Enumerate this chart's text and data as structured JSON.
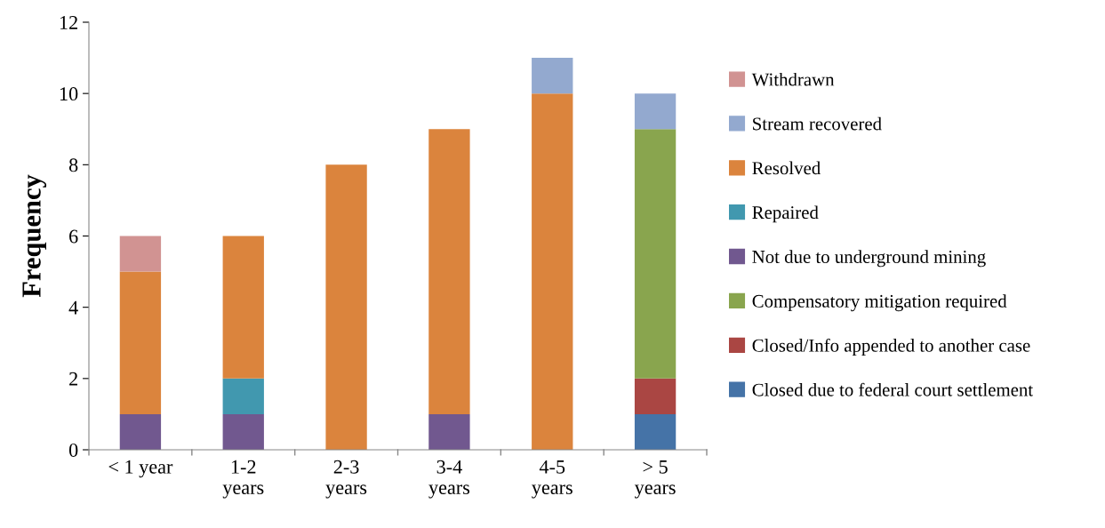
{
  "chart_data": {
    "type": "bar",
    "stacked": true,
    "ylabel": "Frequency",
    "categories": [
      "< 1 year",
      "1-2\nyears",
      "2-3\nyears",
      "3-4\nyears",
      "4-5\nyears",
      "> 5\nyears"
    ],
    "series": [
      {
        "name": "Closed due to federal court settlement",
        "color": "#4573a7",
        "values": [
          null,
          null,
          null,
          null,
          null,
          1
        ]
      },
      {
        "name": "Closed/Info appended to another case",
        "color": "#aa4643",
        "values": [
          null,
          null,
          null,
          null,
          null,
          1
        ]
      },
      {
        "name": "Compensatory mitigation required",
        "color": "#89a54e",
        "values": [
          null,
          null,
          null,
          null,
          null,
          7
        ]
      },
      {
        "name": "Not due to underground mining",
        "color": "#71588f",
        "values": [
          1,
          1,
          null,
          1,
          null,
          null
        ]
      },
      {
        "name": "Repaired",
        "color": "#4198af",
        "values": [
          null,
          1,
          null,
          null,
          null,
          null
        ]
      },
      {
        "name": "Resolved",
        "color": "#db843d",
        "values": [
          4,
          4,
          8,
          8,
          10,
          null
        ]
      },
      {
        "name": "Stream recovered",
        "color": "#93a9cf",
        "values": [
          null,
          null,
          null,
          null,
          1,
          1
        ]
      },
      {
        "name": "Withdrawn",
        "color": "#d19392",
        "values": [
          1,
          null,
          null,
          null,
          null,
          null
        ]
      }
    ],
    "ylim": [
      0,
      12
    ],
    "yticks": [
      0,
      2,
      4,
      6,
      8,
      10,
      12
    ],
    "grid": false,
    "legend": "right"
  }
}
